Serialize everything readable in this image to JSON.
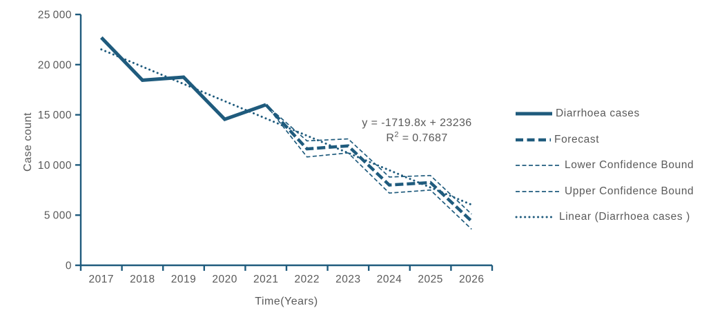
{
  "colors": {
    "line": "#1F5B7D",
    "text": "#595959",
    "background": "#FFFFFF"
  },
  "chart_data": {
    "type": "line",
    "title": "",
    "xlabel": "Time(Years)",
    "ylabel": "Case count",
    "x_categories": [
      "2017",
      "2018",
      "2019",
      "2020",
      "2021",
      "2022",
      "2023",
      "2024",
      "2025",
      "2026"
    ],
    "ylim": [
      0,
      25000
    ],
    "ytick_interval": 5000,
    "ytick_labels": [
      "0",
      "5 000",
      "10 000",
      "15 000",
      "20 000",
      "25 000"
    ],
    "grid": false,
    "legend_position": "right",
    "series": [
      {
        "name": "Diarrhoea cases",
        "style": "solid-thick",
        "values": [
          22700,
          18450,
          18750,
          14550,
          16000,
          null,
          null,
          null,
          null,
          null
        ]
      },
      {
        "name": "Forecast",
        "style": "dashed-thick",
        "values": [
          null,
          null,
          null,
          null,
          16000,
          11600,
          11900,
          8000,
          8250,
          4400
        ]
      },
      {
        "name": "Lower Confidence Bound",
        "style": "dashed-thin",
        "values": [
          null,
          null,
          null,
          null,
          16000,
          10800,
          11200,
          7200,
          7500,
          3600
        ]
      },
      {
        "name": "Upper Confidence Bound",
        "style": "dashed-thin",
        "values": [
          null,
          null,
          null,
          null,
          16000,
          12400,
          12600,
          8800,
          8950,
          5100
        ]
      },
      {
        "name": "Linear (Diarrhoea cases )",
        "style": "dotted",
        "values": [
          21516,
          19796,
          18077,
          16357,
          14637,
          12917,
          11197,
          9478,
          7758,
          6038
        ]
      }
    ],
    "annotation": {
      "equation": "y = -1719.8x + 23236",
      "r2_base": "R",
      "r2_sup": "2",
      "r2_rest": " = 0.7687"
    }
  }
}
